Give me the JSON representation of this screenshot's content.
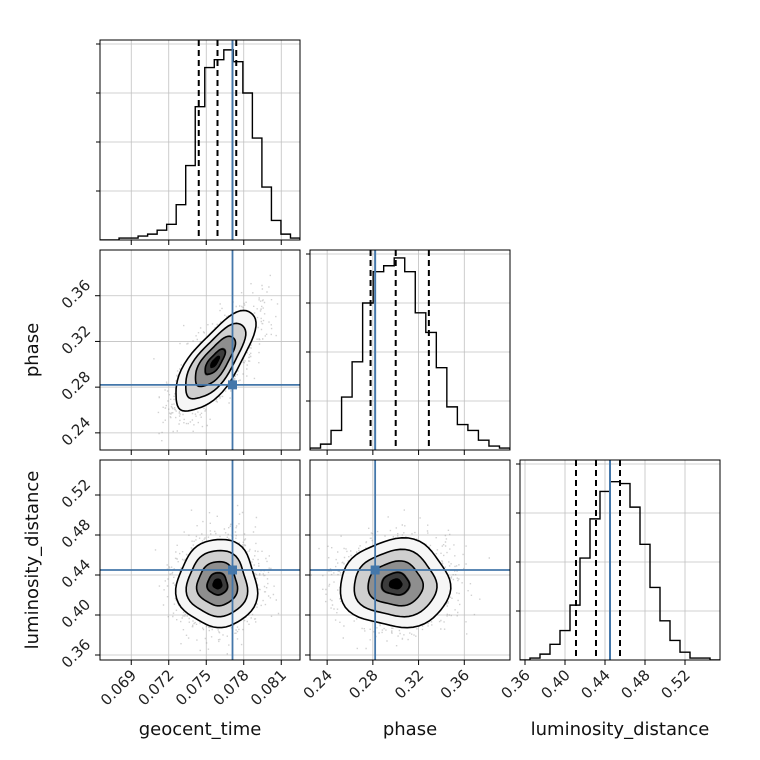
{
  "chart_data": {
    "type": "corner",
    "parameters": [
      "geocent_time",
      "phase",
      "luminosity_distance"
    ],
    "truths": {
      "geocent_time": 0.0771,
      "phase": 0.282,
      "luminosity_distance": 0.445
    },
    "colors": {
      "truth": "#4477aa",
      "hist": "#000000",
      "grid": "#c0c0c0"
    },
    "grid": true,
    "axes": {
      "geocent_time": {
        "range": [
          0.0665,
          0.0825
        ],
        "ticks": [
          0.069,
          0.072,
          0.075,
          0.078,
          0.081
        ],
        "tick_labels": [
          "0.069",
          "0.072",
          "0.075",
          "0.078",
          "0.081"
        ]
      },
      "phase": {
        "range": [
          0.225,
          0.4
        ],
        "ticks": [
          0.24,
          0.28,
          0.32,
          0.36
        ],
        "tick_labels": [
          "0.24",
          "0.28",
          "0.32",
          "0.36"
        ]
      },
      "luminosity_distance": {
        "range": [
          0.355,
          0.555
        ],
        "ticks": [
          0.36,
          0.4,
          0.44,
          0.48,
          0.52
        ],
        "tick_labels": [
          "0.36",
          "0.40",
          "0.44",
          "0.48",
          "0.52"
        ]
      }
    },
    "histograms": {
      "geocent_time": {
        "bins": [
          0.0665,
          0.0825
        ],
        "counts": [
          0,
          0,
          1,
          1,
          2,
          3,
          5,
          8,
          18,
          38,
          68,
          88,
          92,
          97,
          91,
          75,
          52,
          27,
          10,
          3,
          1
        ],
        "max": 100,
        "quantiles": [
          0.0744,
          0.0759,
          0.0774
        ]
      },
      "phase": {
        "bins": [
          0.225,
          0.4
        ],
        "counts": [
          1,
          3,
          10,
          27,
          45,
          75,
          91,
          94,
          98,
          91,
          70,
          60,
          42,
          22,
          13,
          10,
          5,
          2,
          1
        ],
        "max": 100,
        "quantiles": [
          0.278,
          0.3,
          0.329
        ]
      },
      "luminosity_distance": {
        "bins": [
          0.355,
          0.555
        ],
        "counts": [
          0,
          1,
          3,
          8,
          15,
          28,
          52,
          72,
          86,
          91,
          90,
          78,
          59,
          37,
          20,
          10,
          4,
          1,
          1,
          0
        ],
        "max": 100,
        "quantiles": [
          0.411,
          0.431,
          0.455
        ]
      }
    },
    "contours_2d": {
      "phase_vs_geocent_time": {
        "means": [
          0.0757,
          0.302
        ],
        "sigmas": [
          0.0016,
          0.022
        ],
        "rho": 0.72,
        "levels": [
          0.5,
          1.0,
          1.5,
          2.0
        ]
      },
      "luminosity_distance_vs_geocent_time": {
        "means": [
          0.0759,
          0.431
        ],
        "sigmas": [
          0.0016,
          0.022
        ],
        "rho": 0.0,
        "levels": [
          0.5,
          1.0,
          1.5,
          2.0
        ]
      },
      "luminosity_distance_vs_phase": {
        "means": [
          0.3,
          0.431
        ],
        "sigmas": [
          0.024,
          0.022
        ],
        "rho": 0.0,
        "levels": [
          0.5,
          1.0,
          1.5,
          2.0
        ]
      }
    }
  }
}
